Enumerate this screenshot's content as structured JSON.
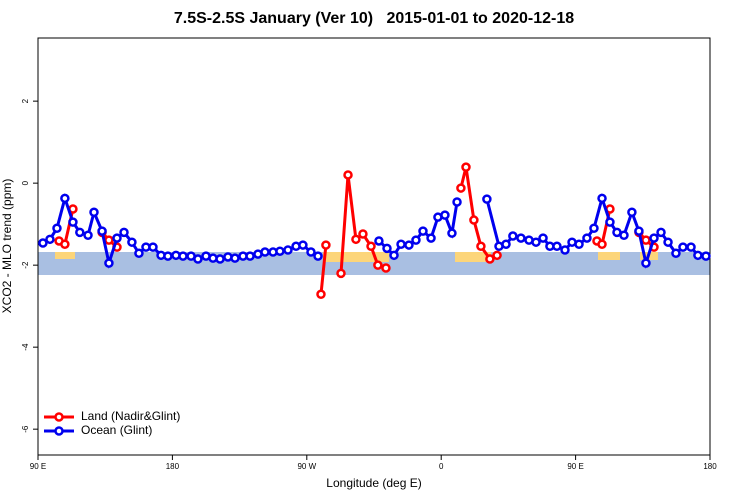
{
  "chart_data": {
    "type": "line",
    "title": "7.5S-2.5S January (Ver 10)   2015-01-01 to 2020-12-18",
    "x_label": "Longitude (deg E)",
    "y_label": "XCO2 - MLO trend (ppm)",
    "xlim": [
      90,
      540
    ],
    "ylim": [
      -6.63,
      3.54
    ],
    "xticks": [
      {
        "value": 90,
        "label": "90 E"
      },
      180,
      {
        "value": 270,
        "label": "90 W"
      },
      {
        "value": 360,
        "label": "0"
      },
      {
        "value": 450,
        "label": "90 E"
      },
      {
        "value": 540,
        "label": "180"
      }
    ],
    "yticks": [
      2,
      0,
      -2,
      -4,
      -6
    ],
    "legend": "bottomleft",
    "series": [
      {
        "name": "Land (Nadir&Glint)",
        "color": "#ff0000",
        "x": [
          104.1,
          108,
          113.4,
          null,
          132.9,
          137.5,
          142.9,
          null,
          279.5,
          282.8,
          null,
          292.9,
          297.6,
          302.9,
          307.6,
          313,
          317.6,
          323,
          null,
          373.2,
          376.6,
          381.9,
          386.6,
          392.6,
          397.4,
          null,
          464.3,
          467.7,
          473,
          null,
          492.4,
          497.1,
          502.5
        ],
        "values": [
          -1.41,
          -1.49,
          -0.63,
          null,
          -1.2,
          -1.39,
          -1.56,
          null,
          -2.71,
          -1.51,
          null,
          -2.2,
          0.2,
          -1.37,
          -1.24,
          -1.54,
          -2.0,
          -2.07,
          null,
          -0.12,
          0.39,
          -0.9,
          -1.54,
          -1.85,
          -1.76,
          null,
          -1.41,
          -1.49,
          -0.63,
          null,
          -1.2,
          -1.39,
          -1.56
        ]
      },
      {
        "name": "Ocean (Glint)",
        "color": "#0000ee",
        "x": [
          93.3,
          98,
          102.7,
          108,
          113.4,
          118,
          123.5,
          127.5,
          132.9,
          137.5,
          142.9,
          147.6,
          152.9,
          157.6,
          162.3,
          167,
          172.4,
          177,
          182.4,
          187.1,
          192.5,
          197.1,
          202.5,
          207.2,
          211.9,
          217.2,
          221.9,
          227.3,
          232,
          237.3,
          242,
          247.4,
          252,
          257.4,
          262.8,
          267.4,
          272.8,
          277.5,
          null,
          318.3,
          323.7,
          328.4,
          333.1,
          338.4,
          343.1,
          347.8,
          353.2,
          357.8,
          362.5,
          367.2,
          370.6,
          null,
          390.6,
          398.7,
          403.4,
          408,
          413.4,
          418.8,
          423.5,
          428.2,
          432.8,
          437.5,
          442.9,
          447.6,
          452.3,
          457.6,
          462.3,
          467.7,
          473,
          477.7,
          482.4,
          487.7,
          492.4,
          497.1,
          502.5,
          507.2,
          511.9,
          517.2,
          521.9,
          527.3,
          531.9,
          537.3
        ],
        "values": [
          -1.46,
          -1.37,
          -1.1,
          -0.37,
          -0.95,
          -1.2,
          -1.27,
          -0.71,
          -1.17,
          -1.95,
          -1.34,
          -1.2,
          -1.44,
          -1.71,
          -1.56,
          -1.56,
          -1.76,
          -1.78,
          -1.76,
          -1.78,
          -1.78,
          -1.85,
          -1.78,
          -1.83,
          -1.85,
          -1.8,
          -1.83,
          -1.78,
          -1.78,
          -1.73,
          -1.68,
          -1.68,
          -1.66,
          -1.63,
          -1.54,
          -1.51,
          -1.68,
          -1.78,
          null,
          -1.41,
          -1.59,
          -1.76,
          -1.49,
          -1.51,
          -1.39,
          -1.17,
          -1.34,
          -0.83,
          -0.78,
          -1.22,
          -0.46,
          null,
          -0.39,
          -1.54,
          -1.49,
          -1.29,
          -1.34,
          -1.39,
          -1.44,
          -1.34,
          -1.54,
          -1.54,
          -1.63,
          -1.44,
          -1.49,
          -1.34,
          -1.1,
          -0.37,
          -0.95,
          -1.2,
          -1.27,
          -0.71,
          -1.17,
          -1.95,
          -1.34,
          -1.2,
          -1.44,
          -1.71,
          -1.56,
          -1.56,
          -1.76,
          -1.78
        ]
      }
    ]
  }
}
